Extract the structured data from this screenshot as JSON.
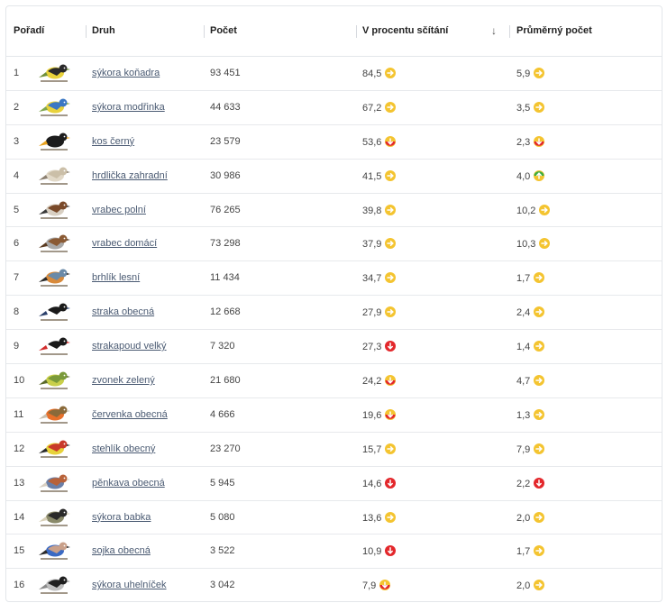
{
  "headers": {
    "rank": "Pořadí",
    "species": "Druh",
    "count": "Počet",
    "percent": "V procentu sčítání",
    "sort_icon": "arrow-down-icon",
    "average": "Průměrný počet"
  },
  "trend_colors": {
    "stable": "#f4c430",
    "decrease": "#e3272b",
    "increase": "#3fae3f"
  },
  "rows": [
    {
      "rank": "1",
      "name": "sýkora koňadra",
      "count": "93 451",
      "percent": "84,5",
      "percent_trend": "stable",
      "avg": "5,9",
      "avg_trend": "stable",
      "icon": "great-tit-icon"
    },
    {
      "rank": "2",
      "name": "sýkora modřinka",
      "count": "44 633",
      "percent": "67,2",
      "percent_trend": "stable",
      "avg": "3,5",
      "avg_trend": "stable",
      "icon": "blue-tit-icon"
    },
    {
      "rank": "3",
      "name": "kos černý",
      "count": "23 579",
      "percent": "53,6",
      "percent_trend": "slight-decrease",
      "avg": "2,3",
      "avg_trend": "slight-decrease",
      "icon": "blackbird-icon"
    },
    {
      "rank": "4",
      "name": "hrdlička zahradní",
      "count": "30 986",
      "percent": "41,5",
      "percent_trend": "stable",
      "avg": "4,0",
      "avg_trend": "slight-increase",
      "icon": "collared-dove-icon"
    },
    {
      "rank": "5",
      "name": "vrabec polní",
      "count": "76 265",
      "percent": "39,8",
      "percent_trend": "stable",
      "avg": "10,2",
      "avg_trend": "stable",
      "icon": "tree-sparrow-icon"
    },
    {
      "rank": "6",
      "name": "vrabec domácí",
      "count": "73 298",
      "percent": "37,9",
      "percent_trend": "stable",
      "avg": "10,3",
      "avg_trend": "stable",
      "icon": "house-sparrow-icon"
    },
    {
      "rank": "7",
      "name": "brhlík lesní",
      "count": "11 434",
      "percent": "34,7",
      "percent_trend": "stable",
      "avg": "1,7",
      "avg_trend": "stable",
      "icon": "nuthatch-icon"
    },
    {
      "rank": "8",
      "name": "straka obecná",
      "count": "12 668",
      "percent": "27,9",
      "percent_trend": "stable",
      "avg": "2,4",
      "avg_trend": "stable",
      "icon": "magpie-icon"
    },
    {
      "rank": "9",
      "name": "strakapoud velký",
      "count": "7 320",
      "percent": "27,3",
      "percent_trend": "decrease",
      "avg": "1,4",
      "avg_trend": "stable",
      "icon": "woodpecker-icon"
    },
    {
      "rank": "10",
      "name": "zvonek zelený",
      "count": "21 680",
      "percent": "24,2",
      "percent_trend": "slight-decrease",
      "avg": "4,7",
      "avg_trend": "stable",
      "icon": "greenfinch-icon"
    },
    {
      "rank": "11",
      "name": "červenka obecná",
      "count": "4 666",
      "percent": "19,6",
      "percent_trend": "slight-decrease",
      "avg": "1,3",
      "avg_trend": "stable",
      "icon": "robin-icon"
    },
    {
      "rank": "12",
      "name": "stehlík obecný",
      "count": "23 270",
      "percent": "15,7",
      "percent_trend": "stable",
      "avg": "7,9",
      "avg_trend": "stable",
      "icon": "goldfinch-icon"
    },
    {
      "rank": "13",
      "name": "pěnkava obecná",
      "count": "5 945",
      "percent": "14,6",
      "percent_trend": "decrease",
      "avg": "2,2",
      "avg_trend": "decrease",
      "icon": "chaffinch-icon"
    },
    {
      "rank": "14",
      "name": "sýkora babka",
      "count": "5 080",
      "percent": "13,6",
      "percent_trend": "stable",
      "avg": "2,0",
      "avg_trend": "stable",
      "icon": "marsh-tit-icon"
    },
    {
      "rank": "15",
      "name": "sojka obecná",
      "count": "3 522",
      "percent": "10,9",
      "percent_trend": "decrease",
      "avg": "1,7",
      "avg_trend": "stable",
      "icon": "jay-icon"
    },
    {
      "rank": "16",
      "name": "sýkora uhelníček",
      "count": "3 042",
      "percent": "7,9",
      "percent_trend": "slight-decrease",
      "avg": "2,0",
      "avg_trend": "stable",
      "icon": "coal-tit-icon"
    }
  ]
}
